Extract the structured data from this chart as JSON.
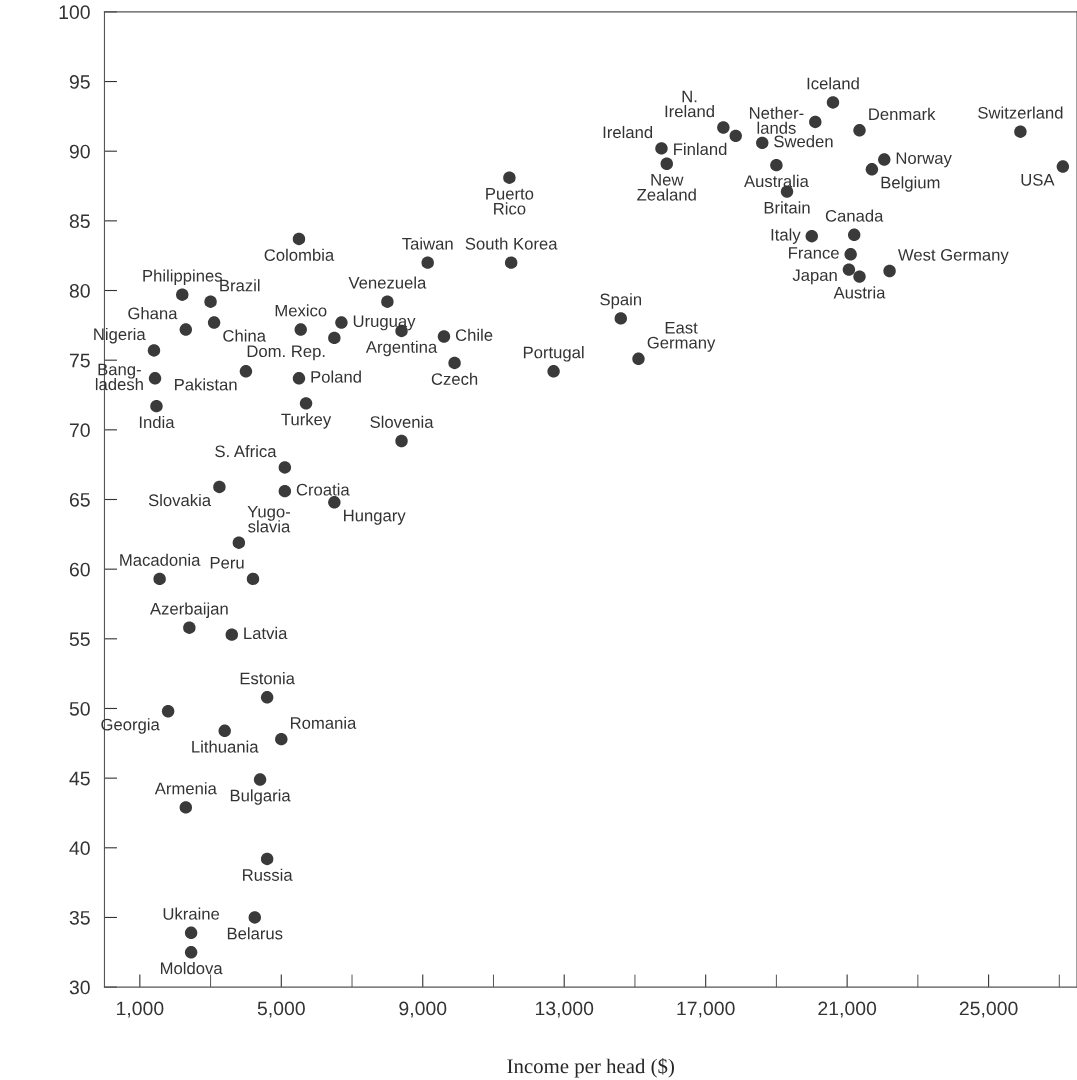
{
  "chart_data": {
    "type": "scatter",
    "xlabel": "Income per head ($)",
    "xlim": [
      0,
      27500
    ],
    "xticks": [
      {
        "value": 1000,
        "label": "1,000"
      },
      {
        "value": 3000,
        "label": null
      },
      {
        "value": 5000,
        "label": "5,000"
      },
      {
        "value": 7000,
        "label": null
      },
      {
        "value": 9000,
        "label": "9,000"
      },
      {
        "value": 11000,
        "label": null
      },
      {
        "value": 13000,
        "label": "13,000"
      },
      {
        "value": 15000,
        "label": null
      },
      {
        "value": 17000,
        "label": "17,000"
      },
      {
        "value": 19000,
        "label": null
      },
      {
        "value": 21000,
        "label": "21,000"
      },
      {
        "value": 23000,
        "label": null
      },
      {
        "value": 25000,
        "label": "25,000"
      },
      {
        "value": 27000,
        "label": null
      }
    ],
    "ylim": [
      30,
      100
    ],
    "yticks": [
      30,
      35,
      40,
      45,
      50,
      55,
      60,
      65,
      70,
      75,
      80,
      85,
      90,
      95,
      100
    ],
    "grid": false,
    "marker": "circle",
    "series": [
      {
        "color": "#3a3a3a",
        "x": [
          11450,
          5500,
          9140,
          11500,
          2200,
          3000,
          8000,
          2300,
          3100,
          5550,
          6700,
          6500,
          8400,
          9600,
          1400,
          9900,
          1430,
          4000,
          5500,
          1470,
          5700,
          8400,
          5100,
          3250,
          5100,
          6500,
          3800,
          1560,
          4200,
          2400,
          3600,
          4600,
          1800,
          3400,
          5000,
          2300,
          4400,
          4600,
          2450,
          4250,
          2450,
          20600,
          20100,
          17500,
          17850,
          21350,
          25900,
          15750,
          18600,
          15900,
          19000,
          22050,
          21700,
          27100,
          19300,
          20000,
          21200,
          21100,
          21050,
          21350,
          22200,
          14600,
          15100,
          12700
        ],
        "values": [
          88.1,
          83.7,
          82.0,
          82.0,
          79.7,
          79.2,
          79.2,
          77.2,
          77.7,
          77.2,
          77.7,
          76.6,
          77.1,
          76.7,
          75.7,
          74.8,
          73.7,
          74.2,
          73.7,
          71.7,
          71.9,
          69.2,
          67.3,
          65.9,
          65.6,
          64.8,
          61.9,
          59.3,
          59.3,
          55.8,
          55.3,
          50.8,
          49.8,
          48.4,
          47.8,
          42.9,
          44.9,
          39.2,
          33.9,
          35.0,
          32.5,
          93.5,
          92.1,
          91.7,
          91.1,
          91.5,
          91.4,
          90.2,
          90.6,
          89.1,
          89.0,
          89.4,
          88.7,
          88.9,
          87.1,
          83.9,
          84.0,
          82.6,
          81.5,
          81.0,
          81.4,
          78.0,
          75.1,
          74.2
        ],
        "value_labels": [
          "Puerto\nRico",
          "Colombia",
          "Taiwan",
          "South Korea",
          "Philippines",
          "Brazil",
          "Venezuela",
          "Ghana",
          "China",
          "Mexico",
          "Uruguay",
          "Dom. Rep.",
          "Argentina",
          "Chile",
          "Nigeria",
          "Czech",
          "Bang-\nladesh",
          "Pakistan",
          "Poland",
          "India",
          "Turkey",
          "Slovenia",
          "S. Africa",
          "Slovakia",
          "Croatia",
          "Hungary",
          "Yugo-\nslavia",
          "Macadonia",
          "Peru",
          "Azerbaijan",
          "Latvia",
          "Estonia",
          "Georgia",
          "Lithuania",
          "Romania",
          "Armenia",
          "Bulgaria",
          "Russia",
          "Ukraine",
          "Belarus",
          "Moldova",
          "Iceland",
          "Nether-\nlands",
          "N.\nIreland",
          "Finland",
          "Denmark",
          "Switzerland",
          "Ireland",
          "Sweden",
          "New\nZealand",
          "Australia",
          "Norway",
          "Belgium",
          "USA",
          "Britain",
          "Italy",
          "Canada",
          "France",
          "Japan",
          "Austria",
          "West Germany",
          "Spain",
          "East\nGermany",
          "Portugal"
        ]
      }
    ]
  }
}
